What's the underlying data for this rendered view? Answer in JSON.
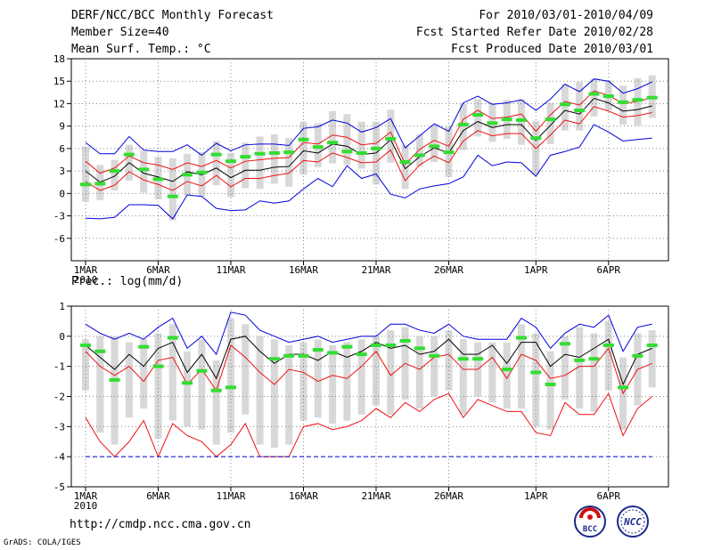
{
  "header": {
    "title": "DERF/NCC/BCC Monthly Forecast",
    "member_size": "Member Size=40",
    "variable": "Mean Surf. Temp.: °C",
    "period": "For 2010/03/01-2010/04/09",
    "started": "Fcst Started Refer Date 2010/02/28",
    "produced": "Fcst Produced Date 2010/03/01"
  },
  "footer": {
    "url": "http://cmdp.ncc.cma.gov.cn",
    "credit": "GrADS: COLA/IGES",
    "logo_bcc": "BCC",
    "logo_ncc": "NCC"
  },
  "colors": {
    "envelope": "#0000dd",
    "spread": "#ee1111",
    "mean": "#000000",
    "obs": "#33dd33",
    "box": "#d8d8d8",
    "grid": "#888888"
  },
  "chart_data": [
    {
      "type": "line",
      "title": "Mean Surf. Temp.: °C",
      "x_labels": [
        {
          "label": "1MAR",
          "sub": "2010",
          "day": 1
        },
        {
          "label": "6MAR",
          "day": 6
        },
        {
          "label": "11MAR",
          "day": 11
        },
        {
          "label": "16MAR",
          "day": 16
        },
        {
          "label": "21MAR",
          "day": 21
        },
        {
          "label": "26MAR",
          "day": 26
        },
        {
          "label": "1APR",
          "day": 32
        },
        {
          "label": "6APR",
          "day": 37
        }
      ],
      "ylim": [
        -9,
        18
      ],
      "yticks": [
        -6,
        -3,
        0,
        3,
        6,
        9,
        12,
        15,
        18
      ],
      "series": [
        {
          "name": "max",
          "color_key": "envelope",
          "values": [
            6.8,
            5.3,
            5.3,
            7.6,
            5.8,
            5.6,
            5.6,
            6.5,
            5.1,
            6.7,
            5.7,
            6.5,
            6.6,
            6.6,
            6.4,
            8.7,
            8.9,
            9.8,
            9.4,
            8.2,
            8.8,
            10.0,
            6.1,
            7.7,
            9.3,
            8.3,
            12.1,
            13.0,
            11.9,
            12.1,
            12.5,
            11.1,
            12.6,
            14.6,
            13.6,
            15.3,
            15.0,
            13.4,
            14.0,
            14.9
          ]
        },
        {
          "name": "upper",
          "color_key": "spread",
          "values": [
            4.3,
            2.7,
            3.4,
            5.0,
            4.1,
            3.8,
            3.2,
            4.1,
            3.6,
            4.4,
            3.4,
            4.3,
            4.5,
            4.7,
            4.8,
            6.8,
            6.6,
            7.8,
            7.5,
            6.5,
            6.7,
            8.2,
            3.9,
            5.9,
            7.1,
            6.3,
            9.9,
            11.1,
            10.0,
            10.2,
            10.6,
            8.3,
            10.5,
            12.3,
            11.8,
            13.7,
            13.1,
            12.0,
            12.3,
            12.8
          ]
        },
        {
          "name": "mean",
          "color_key": "mean",
          "values": [
            3.0,
            1.5,
            2.3,
            4.1,
            2.7,
            2.2,
            1.6,
            2.9,
            2.5,
            3.4,
            2.1,
            3.1,
            3.1,
            3.5,
            3.6,
            5.7,
            5.4,
            6.6,
            6.3,
            5.2,
            5.4,
            7.2,
            3.3,
            4.9,
            6.1,
            5.4,
            8.4,
            9.6,
            8.8,
            9.2,
            9.2,
            7.1,
            9.1,
            11.1,
            10.6,
            12.7,
            12.1,
            11.0,
            11.2,
            11.7
          ]
        },
        {
          "name": "lower",
          "color_key": "spread",
          "values": [
            1.6,
            0.4,
            1.1,
            2.9,
            1.8,
            1.2,
            0.4,
            1.6,
            1.0,
            2.4,
            0.9,
            2.0,
            2.0,
            2.4,
            2.7,
            4.4,
            4.2,
            5.4,
            4.8,
            4.1,
            4.2,
            5.8,
            1.7,
            3.8,
            5.0,
            4.1,
            7.0,
            8.4,
            7.7,
            8.0,
            8.0,
            6.0,
            7.8,
            9.8,
            9.3,
            11.6,
            11.0,
            10.2,
            10.4,
            10.8
          ]
        },
        {
          "name": "min",
          "color_key": "envelope",
          "values": [
            -3.3,
            -3.4,
            -3.2,
            -1.5,
            -1.5,
            -1.6,
            -3.4,
            -0.2,
            -0.4,
            -2.0,
            -2.3,
            -2.2,
            -1.0,
            -1.3,
            -1.0,
            0.6,
            2.0,
            0.9,
            3.7,
            2.0,
            2.6,
            -0.1,
            -0.6,
            0.6,
            1.0,
            1.3,
            2.2,
            5.1,
            3.7,
            4.2,
            4.1,
            2.3,
            5.1,
            5.6,
            6.2,
            9.2,
            8.2,
            7.0,
            7.2,
            7.4
          ]
        }
      ],
      "boxes": {
        "top": [
          6.3,
          3.8,
          4.5,
          6.5,
          5.7,
          4.9,
          4.7,
          5.3,
          5.5,
          7.0,
          5.4,
          6.8,
          7.6,
          7.9,
          7.4,
          9.6,
          9.4,
          11.0,
          10.6,
          9.6,
          9.6,
          11.2,
          6.4,
          7.9,
          9.1,
          8.9,
          12.0,
          12.6,
          12.1,
          12.5,
          12.6,
          9.7,
          12.1,
          14.6,
          14.9,
          15.3,
          15.1,
          14.4,
          15.4,
          15.8
        ],
        "bottom": [
          -1.1,
          -0.9,
          0.4,
          1.7,
          0.1,
          -0.8,
          -3.6,
          -0.3,
          -0.4,
          1.1,
          -0.5,
          0.7,
          0.6,
          1.3,
          0.9,
          2.5,
          3.5,
          4.0,
          3.8,
          3.3,
          1.2,
          4.1,
          0.6,
          3.6,
          4.2,
          2.2,
          5.8,
          7.6,
          6.9,
          7.3,
          6.5,
          2.5,
          6.6,
          8.4,
          8.4,
          10.3,
          11.1,
          9.2,
          9.1,
          10.1
        ]
      },
      "obs": [
        1.2,
        1.3,
        3.0,
        5.2,
        3.2,
        1.9,
        -0.4,
        2.5,
        2.8,
        5.2,
        4.3,
        4.9,
        5.3,
        5.4,
        5.5,
        7.2,
        6.2,
        6.8,
        5.6,
        5.4,
        6.0,
        7.3,
        4.2,
        5.1,
        6.3,
        5.5,
        9.2,
        10.5,
        9.4,
        9.9,
        9.8,
        7.4,
        9.9,
        11.9,
        11.1,
        13.3,
        13.0,
        12.2,
        12.5,
        12.8
      ]
    },
    {
      "type": "line",
      "title": "Prec.: log(mm/d)",
      "x_labels": [
        {
          "label": "1MAR",
          "sub": "2010",
          "day": 1
        },
        {
          "label": "6MAR",
          "day": 6
        },
        {
          "label": "11MAR",
          "day": 11
        },
        {
          "label": "16MAR",
          "day": 16
        },
        {
          "label": "21MAR",
          "day": 21
        },
        {
          "label": "26MAR",
          "day": 26
        },
        {
          "label": "1APR",
          "day": 32
        },
        {
          "label": "6APR",
          "day": 37
        }
      ],
      "ylim": [
        -5,
        1
      ],
      "yticks": [
        -5,
        -4,
        -3,
        -2,
        -1,
        0,
        1
      ],
      "series": [
        {
          "name": "max",
          "color_key": "envelope",
          "values": [
            0.4,
            0.1,
            -0.1,
            0.1,
            -0.1,
            0.3,
            0.6,
            -0.4,
            0.0,
            -0.6,
            0.8,
            0.7,
            0.2,
            0.0,
            -0.2,
            -0.1,
            0.0,
            -0.2,
            -0.1,
            0.0,
            0.0,
            0.4,
            0.4,
            0.2,
            0.1,
            0.4,
            0.0,
            -0.1,
            -0.1,
            -0.1,
            0.6,
            0.3,
            -0.4,
            0.1,
            0.4,
            0.3,
            0.7,
            -0.5,
            0.3,
            0.4
          ]
        },
        {
          "name": "mean",
          "color_key": "mean",
          "values": [
            -0.3,
            -0.7,
            -1.1,
            -0.6,
            -1.0,
            -0.4,
            -0.2,
            -1.2,
            -0.6,
            -1.4,
            -0.1,
            0.0,
            -0.5,
            -0.9,
            -0.6,
            -0.6,
            -0.8,
            -0.5,
            -0.7,
            -0.5,
            -0.2,
            -0.4,
            -0.3,
            -0.6,
            -0.5,
            -0.1,
            -0.6,
            -0.6,
            -0.3,
            -0.9,
            -0.2,
            -0.2,
            -1.0,
            -0.6,
            -0.7,
            -0.4,
            -0.1,
            -1.6,
            -0.6,
            -0.4
          ]
        },
        {
          "name": "upper",
          "color_key": "spread",
          "values": [
            -0.5,
            -1.0,
            -1.3,
            -1.0,
            -1.5,
            -0.8,
            -0.7,
            -1.6,
            -1.1,
            -1.8,
            -0.3,
            -0.7,
            -1.2,
            -1.6,
            -1.1,
            -1.2,
            -1.5,
            -1.3,
            -1.4,
            -1.0,
            -0.5,
            -1.3,
            -0.9,
            -1.1,
            -0.7,
            -0.6,
            -1.1,
            -1.1,
            -0.7,
            -1.4,
            -0.6,
            -0.8,
            -1.4,
            -1.3,
            -1.0,
            -1.0,
            -0.4,
            -1.9,
            -1.1,
            -0.9
          ]
        },
        {
          "name": "lower",
          "color_key": "spread",
          "values": [
            -2.7,
            -3.5,
            -4.0,
            -3.5,
            -2.8,
            -4.0,
            -2.9,
            -3.3,
            -3.5,
            -4.0,
            -3.6,
            -2.9,
            -4.0,
            -4.0,
            -4.0,
            -3.0,
            -2.9,
            -3.1,
            -3.0,
            -2.8,
            -2.4,
            -2.7,
            -2.2,
            -2.5,
            -2.1,
            -1.9,
            -2.7,
            -2.1,
            -2.3,
            -2.5,
            -2.5,
            -3.2,
            -3.3,
            -2.2,
            -2.6,
            -2.6,
            -1.9,
            -3.3,
            -2.4,
            -2.0
          ]
        },
        {
          "name": "min",
          "color_key": "envelope",
          "values": [
            -4,
            -4,
            -4,
            -4,
            -4,
            -4,
            -4,
            -4,
            -4,
            -4,
            -4,
            -4,
            -4,
            -4,
            -4,
            -4,
            -4,
            -4,
            -4,
            -4,
            -4,
            -4,
            -4,
            -4,
            -4,
            -4,
            -4,
            -4,
            -4,
            -4,
            -4,
            -4,
            -4,
            -4,
            -4,
            -4,
            -4,
            -4,
            -4,
            -4
          ]
        }
      ],
      "boxes": {
        "top": [
          -0.1,
          0.0,
          0.0,
          -0.2,
          -0.1,
          0.1,
          0.4,
          -0.5,
          -0.1,
          -0.8,
          0.6,
          0.4,
          0.0,
          -0.1,
          -0.3,
          -0.2,
          -0.1,
          -0.3,
          -0.2,
          -0.1,
          0.0,
          0.2,
          0.3,
          0.0,
          0.0,
          0.2,
          -0.1,
          -0.2,
          -0.2,
          -0.2,
          0.4,
          0.1,
          -0.5,
          0.0,
          0.3,
          0.1,
          0.5,
          -0.7,
          0.1,
          0.2
        ],
        "bottom": [
          -1.8,
          -3.2,
          -3.6,
          -2.7,
          -2.4,
          -3.4,
          -2.8,
          -3.0,
          -3.1,
          -3.6,
          -3.2,
          -2.6,
          -3.6,
          -3.7,
          -3.6,
          -2.8,
          -2.7,
          -2.9,
          -2.8,
          -2.6,
          -2.3,
          -2.6,
          -2.1,
          -2.4,
          -2.0,
          -1.8,
          -2.6,
          -2.0,
          -2.2,
          -2.4,
          -2.4,
          -3.0,
          -3.1,
          -2.1,
          -2.4,
          -2.5,
          -1.8,
          -3.1,
          -2.3,
          -1.7
        ]
      },
      "obs": [
        -0.3,
        -0.5,
        -1.45,
        null,
        -0.35,
        -1.0,
        -0.05,
        -1.55,
        -1.15,
        -1.8,
        -1.7,
        null,
        null,
        -0.75,
        -0.65,
        -0.65,
        -0.45,
        -0.55,
        -0.35,
        -0.6,
        -0.3,
        -0.3,
        -0.15,
        -0.4,
        -0.65,
        null,
        -0.75,
        -0.75,
        null,
        -1.1,
        -0.05,
        -1.2,
        -1.6,
        -0.25,
        -0.8,
        -0.75,
        -0.3,
        -1.7,
        -0.65,
        -0.3
      ]
    }
  ]
}
